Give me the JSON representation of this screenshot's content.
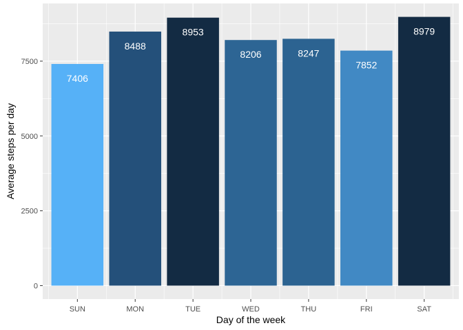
{
  "chart_data": {
    "type": "bar",
    "categories": [
      "SUN",
      "MON",
      "TUE",
      "WED",
      "THU",
      "FRI",
      "SAT"
    ],
    "values": [
      7406,
      8488,
      8953,
      8206,
      8247,
      7852,
      8979
    ],
    "data_labels": [
      "7406",
      "8488",
      "8953",
      "8206",
      "8247",
      "7852",
      "8979"
    ],
    "bar_colors": [
      "#56B1F7",
      "#24507A",
      "#132B43",
      "#2D6594",
      "#2C6391",
      "#4189C4",
      "#132B43"
    ],
    "xlabel": "Day of the week",
    "ylabel": "Average steps per day",
    "ylim": [
      -449,
      9428
    ],
    "yticks": [
      0,
      2500,
      5000,
      7500
    ],
    "ytick_labels": [
      "0",
      "2500",
      "5000",
      "7500"
    ],
    "grid": true,
    "panel_background": "#EBEBEB",
    "gridline_color": "#FFFFFF",
    "legend": "none"
  }
}
